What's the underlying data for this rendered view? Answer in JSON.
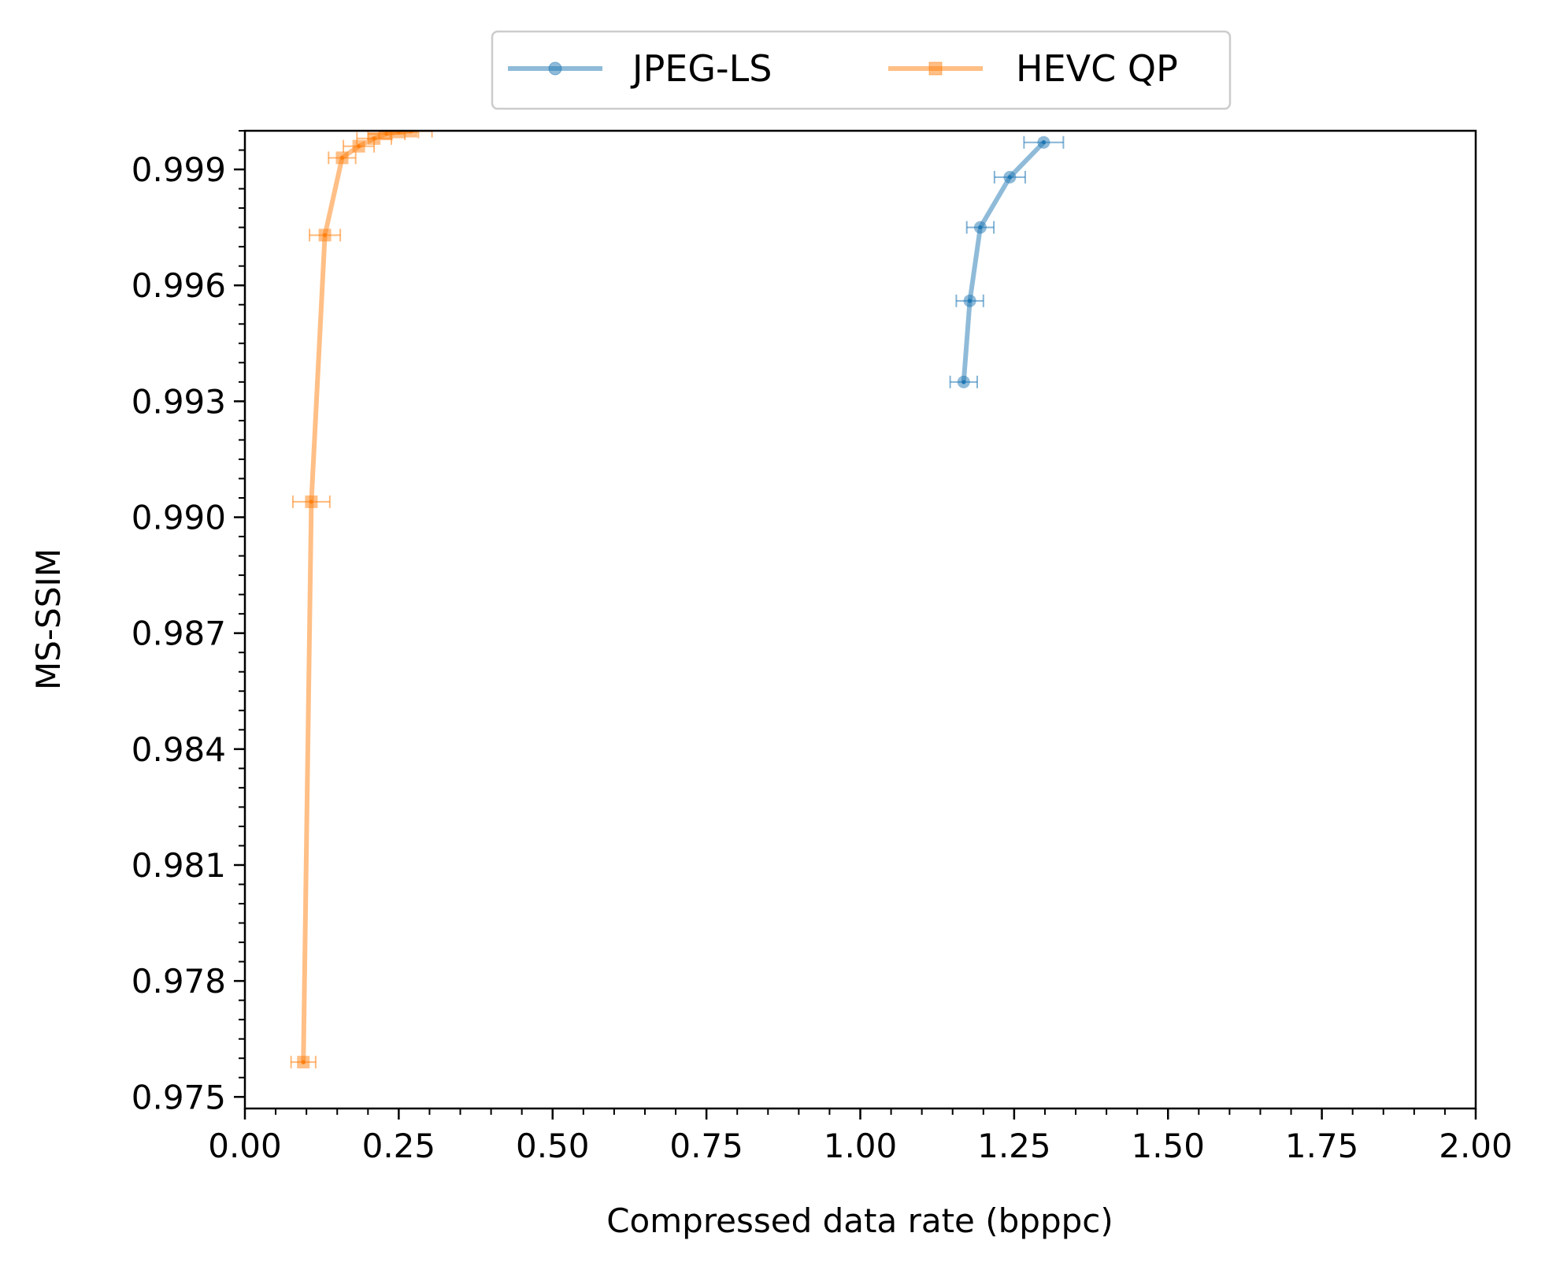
{
  "chart_data": {
    "type": "line",
    "title": "",
    "xlabel": "Compressed data rate (bpppc)",
    "ylabel": "MS-SSIM",
    "xlim": [
      0.0,
      2.0
    ],
    "ylim": [
      0.9747,
      1.0
    ],
    "xticks": [
      0.0,
      0.25,
      0.5,
      0.75,
      1.0,
      1.25,
      1.5,
      1.75,
      2.0
    ],
    "xtick_labels": [
      "0.00",
      "0.25",
      "0.50",
      "0.75",
      "1.00",
      "1.25",
      "1.50",
      "1.75",
      "2.00"
    ],
    "yticks": [
      0.975,
      0.978,
      0.981,
      0.984,
      0.987,
      0.99,
      0.993,
      0.996,
      0.999
    ],
    "ytick_labels": [
      "0.975",
      "0.978",
      "0.981",
      "0.984",
      "0.987",
      "0.990",
      "0.993",
      "0.996",
      "0.999"
    ],
    "grid": false,
    "legend_position": "top-center-outside",
    "series": [
      {
        "name": "JPEG-LS",
        "color": "#1f77b4",
        "marker": "circle",
        "x": [
          1.168,
          1.178,
          1.195,
          1.243,
          1.298
        ],
        "y": [
          0.9935,
          0.9956,
          0.9975,
          0.9988,
          0.9997
        ],
        "xerr": [
          0.022,
          0.022,
          0.022,
          0.025,
          0.032
        ]
      },
      {
        "name": "HEVC QP",
        "color": "#ff7f0e",
        "marker": "square",
        "x": [
          0.095,
          0.108,
          0.13,
          0.158,
          0.185,
          0.21,
          0.23,
          0.25,
          0.27
        ],
        "y": [
          0.9759,
          0.9904,
          0.9973,
          0.9993,
          0.9996,
          0.9998,
          0.99992,
          0.99997,
          0.99999
        ],
        "xerr": [
          0.02,
          0.03,
          0.025,
          0.022,
          0.025,
          0.028,
          0.03,
          0.032,
          0.034
        ]
      }
    ]
  }
}
